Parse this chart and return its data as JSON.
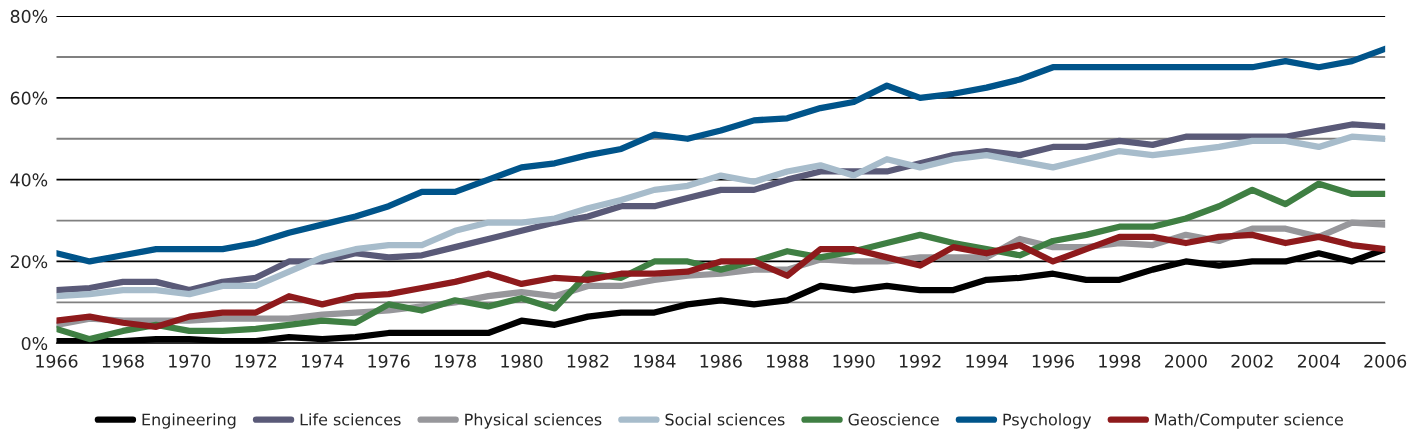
{
  "chart_data": {
    "type": "line",
    "x": [
      1966,
      1967,
      1968,
      1969,
      1970,
      1971,
      1972,
      1973,
      1974,
      1975,
      1976,
      1977,
      1978,
      1979,
      1980,
      1981,
      1982,
      1983,
      1984,
      1985,
      1986,
      1987,
      1988,
      1989,
      1990,
      1991,
      1992,
      1993,
      1994,
      1995,
      1996,
      1997,
      1998,
      1999,
      2000,
      2001,
      2002,
      2003,
      2004,
      2005,
      2006
    ],
    "series": [
      {
        "name": "Engineering",
        "color": "#000000",
        "values": [
          0.5,
          0.5,
          0.5,
          1,
          1,
          0.5,
          0.5,
          1.5,
          1,
          1.5,
          2.5,
          2.5,
          2.5,
          2.5,
          5.5,
          4.5,
          6.5,
          7.5,
          7.5,
          9.5,
          10.5,
          9.5,
          10.5,
          14,
          13,
          14,
          13,
          13,
          15.5,
          16,
          17,
          15.5,
          15.5,
          18,
          20,
          19,
          20,
          20,
          22,
          20,
          23
        ]
      },
      {
        "name": "Life sciences",
        "color": "#5a5a78",
        "values": [
          13,
          13.5,
          15,
          15,
          13,
          15,
          16,
          20,
          20,
          22,
          21,
          21.5,
          23.5,
          25.5,
          27.5,
          29.5,
          31,
          33.5,
          33.5,
          35.5,
          37.5,
          37.5,
          40,
          42,
          42,
          42,
          44,
          46,
          47,
          46,
          48,
          48,
          49.5,
          48.5,
          50.5,
          50.5,
          50.5,
          50.5,
          52,
          53.5,
          53
        ]
      },
      {
        "name": "Physical sciences",
        "color": "#97979b",
        "values": [
          4.5,
          6,
          5.5,
          5.5,
          5.5,
          6,
          6,
          6,
          7,
          7.5,
          8,
          9,
          10,
          11.5,
          12.5,
          11.5,
          14,
          14,
          15.5,
          16.5,
          17,
          18,
          18,
          20.5,
          20,
          20,
          21,
          21,
          21,
          25.5,
          23.5,
          23.5,
          24.5,
          24,
          26.5,
          25,
          28,
          28,
          26,
          29.5,
          29
        ]
      },
      {
        "name": "Social sciences",
        "color": "#a7bccb",
        "values": [
          11.5,
          12,
          13,
          13,
          12,
          14,
          14,
          17.5,
          21,
          23,
          24,
          24,
          27.5,
          29.5,
          29.5,
          30.5,
          33,
          35,
          37.5,
          38.5,
          41,
          39.5,
          42,
          43.5,
          41,
          45,
          43,
          45,
          46,
          44.5,
          43,
          45,
          47,
          46,
          47,
          48,
          49.5,
          49.5,
          48,
          50.5,
          50
        ]
      },
      {
        "name": "Geoscience",
        "color": "#3f7f43",
        "values": [
          3.5,
          1,
          3,
          4.5,
          3,
          3,
          3.5,
          4.5,
          5.5,
          5,
          9.5,
          8,
          10.5,
          9,
          11,
          8.5,
          17,
          16,
          20,
          20,
          18,
          20,
          22.5,
          21,
          22.5,
          24.5,
          26.5,
          24.5,
          23,
          21.5,
          25,
          26.5,
          28.5,
          28.5,
          30.5,
          33.5,
          37.5,
          34,
          39,
          36.5,
          36.5
        ]
      },
      {
        "name": "Psychology",
        "color": "#00548a",
        "values": [
          22,
          20,
          21.5,
          23,
          23,
          23,
          24.5,
          27,
          29,
          31,
          33.5,
          37,
          37,
          40,
          43,
          44,
          46,
          47.5,
          51,
          50,
          52,
          54.5,
          55,
          57.5,
          59,
          63,
          60,
          61,
          62.5,
          64.5,
          67.5,
          67.5,
          67.5,
          67.5,
          67.5,
          67.5,
          67.5,
          69,
          67.5,
          69,
          72
        ]
      },
      {
        "name": "Math/Computer science",
        "color": "#8e1a1c",
        "values": [
          5.5,
          6.5,
          5,
          4,
          6.5,
          7.5,
          7.5,
          11.5,
          9.5,
          11.5,
          12,
          13.5,
          15,
          17,
          14.5,
          16,
          15.5,
          17,
          17,
          17.5,
          20,
          20,
          16.5,
          23,
          23,
          21,
          19,
          23.5,
          22,
          24,
          20,
          23,
          26,
          26,
          24.5,
          26,
          26.5,
          24.5,
          26,
          24,
          23
        ]
      }
    ],
    "xlim": [
      1966,
      2006
    ],
    "xticks": [
      1966,
      1968,
      1970,
      1972,
      1974,
      1976,
      1978,
      1980,
      1982,
      1984,
      1986,
      1988,
      1990,
      1992,
      1994,
      1996,
      1998,
      2000,
      2002,
      2004,
      2006
    ],
    "ylim": [
      0,
      80
    ],
    "yticks": [
      {
        "value": 0,
        "label": "0%"
      },
      {
        "value": 10,
        "label": null
      },
      {
        "value": 20,
        "label": "20%"
      },
      {
        "value": 30,
        "label": null
      },
      {
        "value": 40,
        "label": "40%"
      },
      {
        "value": 50,
        "label": null
      },
      {
        "value": 60,
        "label": "60%"
      },
      {
        "value": 70,
        "label": null
      },
      {
        "value": 80,
        "label": "80%"
      }
    ],
    "grid": "y",
    "legend": "bottom",
    "marker": "none",
    "line_style": "solid"
  }
}
